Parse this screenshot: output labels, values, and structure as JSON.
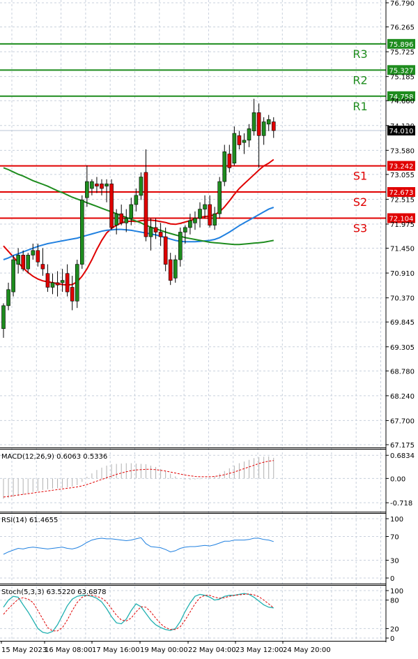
{
  "chart_data": [
    {
      "type": "candlestick",
      "title": "",
      "ylim": [
        67.175,
        76.79
      ],
      "y_ticks": [
        "76.790",
        "76.265",
        "75.725",
        "75.185",
        "74.660",
        "74.120",
        "73.580",
        "73.055",
        "72.515",
        "71.975",
        "71.450",
        "70.910",
        "70.370",
        "69.845",
        "69.305",
        "68.780",
        "68.240",
        "67.700",
        "67.175"
      ],
      "x_labels": [
        "15 May 2023",
        "16 May 08:00",
        "17 May 16:00",
        "19 May 00:00",
        "22 May 04:00",
        "23 May 12:00",
        "24 May 20:00"
      ],
      "candles": [
        {
          "o": 69.7,
          "h": 70.25,
          "l": 69.5,
          "c": 70.2
        },
        {
          "o": 70.2,
          "h": 70.7,
          "l": 70.1,
          "c": 70.55
        },
        {
          "o": 70.5,
          "h": 71.3,
          "l": 70.4,
          "c": 71.2
        },
        {
          "o": 71.1,
          "h": 71.45,
          "l": 70.9,
          "c": 71.3
        },
        {
          "o": 71.3,
          "h": 71.4,
          "l": 70.95,
          "c": 71.0
        },
        {
          "o": 71.0,
          "h": 71.35,
          "l": 70.9,
          "c": 71.3
        },
        {
          "o": 71.3,
          "h": 71.55,
          "l": 71.2,
          "c": 71.4
        },
        {
          "o": 71.4,
          "h": 71.55,
          "l": 71.05,
          "c": 71.15
        },
        {
          "o": 71.1,
          "h": 71.45,
          "l": 70.85,
          "c": 71.0
        },
        {
          "o": 70.9,
          "h": 71.1,
          "l": 70.5,
          "c": 70.6
        },
        {
          "o": 70.6,
          "h": 70.9,
          "l": 70.45,
          "c": 70.7
        },
        {
          "o": 70.7,
          "h": 70.95,
          "l": 70.4,
          "c": 70.65
        },
        {
          "o": 70.7,
          "h": 71.0,
          "l": 70.5,
          "c": 70.75
        },
        {
          "o": 70.9,
          "h": 71.1,
          "l": 70.4,
          "c": 70.5
        },
        {
          "o": 70.6,
          "h": 70.85,
          "l": 70.1,
          "c": 70.3
        },
        {
          "o": 70.3,
          "h": 71.2,
          "l": 70.15,
          "c": 71.1
        },
        {
          "o": 71.1,
          "h": 72.6,
          "l": 71.0,
          "c": 72.5
        },
        {
          "o": 72.55,
          "h": 73.25,
          "l": 72.35,
          "c": 72.9
        },
        {
          "o": 72.75,
          "h": 72.95,
          "l": 72.6,
          "c": 72.9
        },
        {
          "o": 72.85,
          "h": 73.0,
          "l": 72.65,
          "c": 72.8
        },
        {
          "o": 72.85,
          "h": 72.95,
          "l": 72.6,
          "c": 72.75
        },
        {
          "o": 72.8,
          "h": 72.95,
          "l": 72.45,
          "c": 72.85
        },
        {
          "o": 72.85,
          "h": 72.95,
          "l": 71.85,
          "c": 71.9
        },
        {
          "o": 71.95,
          "h": 72.3,
          "l": 71.75,
          "c": 72.2
        },
        {
          "o": 72.2,
          "h": 72.4,
          "l": 71.95,
          "c": 72.0
        },
        {
          "o": 72.0,
          "h": 72.3,
          "l": 71.8,
          "c": 72.1
        },
        {
          "o": 72.1,
          "h": 72.55,
          "l": 71.95,
          "c": 72.4
        },
        {
          "o": 72.4,
          "h": 72.75,
          "l": 72.25,
          "c": 72.6
        },
        {
          "o": 72.6,
          "h": 73.1,
          "l": 72.5,
          "c": 73.0
        },
        {
          "o": 73.1,
          "h": 73.6,
          "l": 71.6,
          "c": 71.7
        },
        {
          "o": 71.7,
          "h": 72.1,
          "l": 71.4,
          "c": 71.9
        },
        {
          "o": 71.9,
          "h": 72.1,
          "l": 71.65,
          "c": 71.8
        },
        {
          "o": 71.8,
          "h": 72.0,
          "l": 71.5,
          "c": 71.7
        },
        {
          "o": 71.7,
          "h": 71.9,
          "l": 70.95,
          "c": 71.1
        },
        {
          "o": 71.2,
          "h": 71.35,
          "l": 70.65,
          "c": 70.75
        },
        {
          "o": 70.8,
          "h": 71.3,
          "l": 70.7,
          "c": 71.2
        },
        {
          "o": 71.2,
          "h": 71.9,
          "l": 71.05,
          "c": 71.8
        },
        {
          "o": 71.8,
          "h": 71.95,
          "l": 71.55,
          "c": 71.9
        },
        {
          "o": 71.9,
          "h": 72.2,
          "l": 71.75,
          "c": 72.05
        },
        {
          "o": 72.0,
          "h": 72.25,
          "l": 71.85,
          "c": 72.1
        },
        {
          "o": 72.1,
          "h": 72.45,
          "l": 71.9,
          "c": 72.3
        },
        {
          "o": 72.3,
          "h": 72.6,
          "l": 72.1,
          "c": 72.4
        },
        {
          "o": 72.4,
          "h": 72.6,
          "l": 71.9,
          "c": 71.95
        },
        {
          "o": 71.95,
          "h": 72.35,
          "l": 71.85,
          "c": 72.2
        },
        {
          "o": 72.2,
          "h": 73.0,
          "l": 72.1,
          "c": 72.9
        },
        {
          "o": 72.9,
          "h": 73.7,
          "l": 72.8,
          "c": 73.55
        },
        {
          "o": 73.5,
          "h": 73.7,
          "l": 73.1,
          "c": 73.2
        },
        {
          "o": 73.3,
          "h": 74.1,
          "l": 73.25,
          "c": 73.95
        },
        {
          "o": 73.9,
          "h": 74.0,
          "l": 73.6,
          "c": 73.7
        },
        {
          "o": 73.75,
          "h": 73.95,
          "l": 73.5,
          "c": 73.8
        },
        {
          "o": 73.8,
          "h": 74.15,
          "l": 73.65,
          "c": 74.05
        },
        {
          "o": 74.0,
          "h": 74.7,
          "l": 73.9,
          "c": 74.4
        },
        {
          "o": 74.4,
          "h": 74.6,
          "l": 73.2,
          "c": 73.9
        },
        {
          "o": 73.9,
          "h": 74.3,
          "l": 73.7,
          "c": 74.2
        },
        {
          "o": 74.15,
          "h": 74.35,
          "l": 74.0,
          "c": 74.25
        },
        {
          "o": 74.2,
          "h": 74.3,
          "l": 73.85,
          "c": 74.01
        }
      ],
      "moving_averages": [
        {
          "color": "#e00000",
          "values": [
            71.5,
            71.38,
            71.26,
            71.14,
            71.02,
            70.92,
            70.84,
            70.78,
            70.74,
            70.72,
            70.7,
            70.68,
            70.66,
            70.65,
            70.66,
            70.72,
            70.84,
            71.0,
            71.2,
            71.42,
            71.62,
            71.78,
            71.88,
            71.95,
            72.0,
            72.03,
            72.04,
            72.03,
            72.05,
            72.06,
            72.06,
            72.05,
            72.03,
            72.01,
            71.98,
            71.97,
            71.99,
            72.02,
            72.05,
            72.09,
            72.12,
            72.14,
            72.15,
            72.18,
            72.24,
            72.35,
            72.48,
            72.62,
            72.75,
            72.85,
            72.95,
            73.05,
            73.15,
            73.24,
            73.3,
            73.38
          ]
        },
        {
          "color": "#2080e0",
          "values": [
            71.2,
            71.24,
            71.29,
            71.33,
            71.37,
            71.41,
            71.45,
            71.49,
            71.52,
            71.55,
            71.57,
            71.59,
            71.61,
            71.63,
            71.65,
            71.67,
            71.7,
            71.73,
            71.76,
            71.79,
            71.82,
            71.84,
            71.85,
            71.86,
            71.86,
            71.85,
            71.84,
            71.82,
            71.8,
            71.78,
            71.76,
            71.74,
            71.71,
            71.68,
            71.65,
            71.62,
            71.6,
            71.59,
            71.59,
            71.59,
            71.6,
            71.61,
            71.62,
            71.64,
            71.68,
            71.74,
            71.8,
            71.87,
            71.94,
            72.0,
            72.06,
            72.12,
            72.18,
            72.24,
            72.3,
            72.34
          ]
        },
        {
          "color": "#1e8c1e",
          "values": [
            73.2,
            73.16,
            73.11,
            73.06,
            73.02,
            72.97,
            72.92,
            72.88,
            72.84,
            72.8,
            72.75,
            72.7,
            72.66,
            72.61,
            72.56,
            72.52,
            72.48,
            72.44,
            72.4,
            72.36,
            72.32,
            72.28,
            72.24,
            72.2,
            72.16,
            72.12,
            72.08,
            72.04,
            72.0,
            71.95,
            71.91,
            71.87,
            71.84,
            71.8,
            71.77,
            71.74,
            71.71,
            71.68,
            71.66,
            71.64,
            71.62,
            71.6,
            71.58,
            71.57,
            71.56,
            71.55,
            71.54,
            71.53,
            71.53,
            71.54,
            71.55,
            71.56,
            71.57,
            71.58,
            71.6,
            71.62
          ]
        }
      ],
      "levels": [
        {
          "label": "R3",
          "value": 75.896,
          "price": "75.896",
          "color": "#1e8c1e"
        },
        {
          "label": "R2",
          "value": 75.327,
          "price": "75.327",
          "color": "#1e8c1e"
        },
        {
          "label": "R1",
          "value": 74.758,
          "price": "74.758",
          "color": "#1e8c1e"
        },
        {
          "label": "S1",
          "value": 73.242,
          "price": "73.242",
          "color": "#e00000"
        },
        {
          "label": "S2",
          "value": 72.673,
          "price": "72.673",
          "color": "#e00000"
        },
        {
          "label": "S3",
          "value": 72.104,
          "price": "72.104",
          "color": "#e00000"
        }
      ],
      "current_price": {
        "value": 74.01,
        "label": "74.010"
      }
    },
    {
      "type": "bar",
      "title": "MACD(12,26,9) 0.6063 0.5336",
      "ylim": [
        -0.9,
        0.75
      ],
      "y_ticks": [
        "0.6834",
        "0.00",
        "-0.718"
      ],
      "y_tick_values": [
        0.6834,
        0.0,
        -0.718
      ],
      "histogram": [
        -0.6,
        -0.58,
        -0.55,
        -0.52,
        -0.48,
        -0.44,
        -0.4,
        -0.37,
        -0.34,
        -0.32,
        -0.3,
        -0.29,
        -0.28,
        -0.26,
        -0.24,
        -0.2,
        -0.1,
        0.05,
        0.15,
        0.25,
        0.32,
        0.38,
        0.42,
        0.43,
        0.44,
        0.45,
        0.45,
        0.44,
        0.43,
        0.42,
        0.38,
        0.34,
        0.28,
        0.22,
        0.14,
        0.06,
        0.0,
        -0.03,
        -0.04,
        -0.03,
        -0.02,
        0.0,
        0.02,
        0.06,
        0.14,
        0.22,
        0.3,
        0.38,
        0.45,
        0.5,
        0.55,
        0.6,
        0.63,
        0.64,
        0.65,
        0.61
      ],
      "signal": [
        -0.55,
        -0.53,
        -0.51,
        -0.49,
        -0.47,
        -0.45,
        -0.43,
        -0.41,
        -0.39,
        -0.37,
        -0.35,
        -0.33,
        -0.31,
        -0.29,
        -0.27,
        -0.25,
        -0.22,
        -0.18,
        -0.13,
        -0.08,
        -0.03,
        0.02,
        0.07,
        0.12,
        0.16,
        0.2,
        0.23,
        0.25,
        0.26,
        0.27,
        0.27,
        0.26,
        0.24,
        0.22,
        0.19,
        0.16,
        0.13,
        0.1,
        0.08,
        0.06,
        0.05,
        0.05,
        0.05,
        0.06,
        0.08,
        0.11,
        0.15,
        0.19,
        0.24,
        0.29,
        0.34,
        0.39,
        0.44,
        0.48,
        0.51,
        0.53
      ]
    },
    {
      "type": "line",
      "title": "RSI(14) 61.4655",
      "ylim": [
        0,
        100
      ],
      "y_ticks": [
        "100",
        "70",
        "30",
        "0"
      ],
      "y_tick_values": [
        100,
        70,
        30,
        0
      ],
      "values": [
        40,
        44,
        47,
        50,
        49,
        51,
        52,
        51,
        50,
        49,
        50,
        51,
        52,
        50,
        49,
        51,
        55,
        60,
        64,
        66,
        67,
        66,
        66,
        65,
        64,
        63,
        64,
        66,
        68,
        58,
        53,
        52,
        51,
        48,
        44,
        46,
        50,
        52,
        53,
        53,
        54,
        55,
        54,
        56,
        59,
        62,
        62,
        64,
        64,
        64,
        65,
        67,
        67,
        65,
        64,
        61.4655
      ]
    },
    {
      "type": "line",
      "title": "Stoch(5,3,3) 63.5220 63.6878",
      "ylim": [
        0,
        100
      ],
      "y_ticks": [
        "100",
        "80",
        "20",
        "0"
      ],
      "y_tick_values": [
        100,
        80,
        20,
        0
      ],
      "series": [
        {
          "values": [
            65,
            80,
            88,
            86,
            70,
            55,
            38,
            20,
            12,
            10,
            14,
            28,
            48,
            68,
            82,
            88,
            90,
            90,
            88,
            84,
            76,
            62,
            45,
            32,
            30,
            40,
            58,
            72,
            66,
            52,
            38,
            28,
            22,
            18,
            16,
            20,
            35,
            56,
            74,
            88,
            92,
            90,
            86,
            80,
            82,
            88,
            90,
            90,
            92,
            94,
            92,
            86,
            78,
            70,
            65,
            63.522
          ]
        },
        {
          "values": [
            50,
            62,
            72,
            82,
            85,
            82,
            75,
            58,
            40,
            22,
            15,
            15,
            22,
            38,
            58,
            75,
            86,
            90,
            90,
            88,
            84,
            76,
            62,
            48,
            38,
            36,
            42,
            55,
            66,
            65,
            55,
            42,
            30,
            22,
            18,
            18,
            24,
            38,
            55,
            72,
            85,
            90,
            90,
            86,
            84,
            85,
            88,
            90,
            91,
            92,
            93,
            91,
            87,
            80,
            72,
            63.6878
          ]
        }
      ]
    }
  ]
}
